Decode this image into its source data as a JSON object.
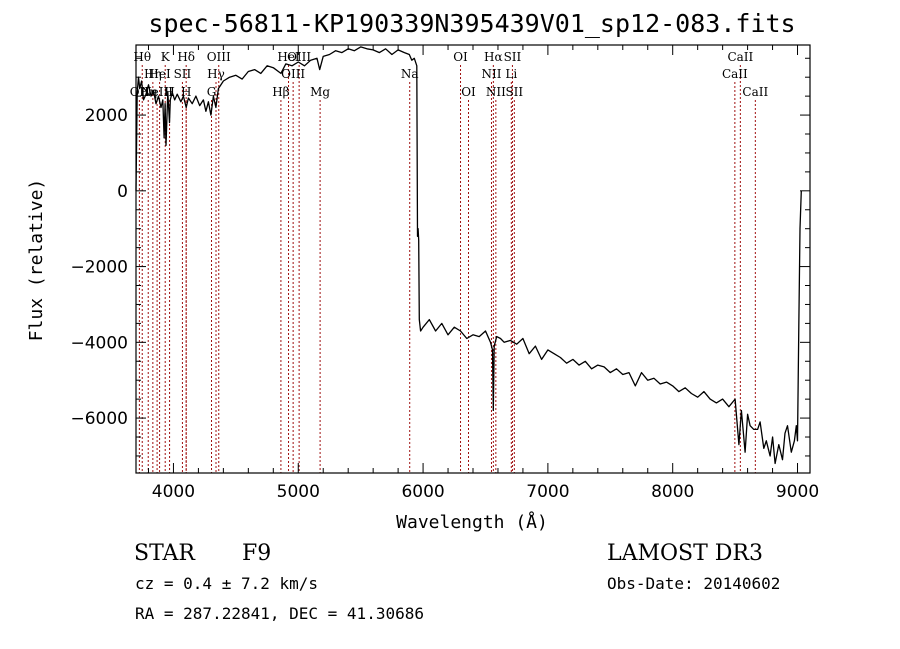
{
  "chart_data": {
    "type": "line",
    "title": "spec-56811-KP190339N395439V01_sp12-083.fits",
    "xlabel": "Wavelength (Å)",
    "ylabel": "Flux (relative)",
    "xlim": [
      3700,
      9100
    ],
    "ylim": [
      -7450,
      3850
    ],
    "x_ticks": [
      4000,
      5000,
      6000,
      7000,
      8000,
      9000
    ],
    "y_ticks": [
      2000,
      0,
      -2000,
      -4000,
      -6000
    ],
    "x_tick_labels": [
      "4000",
      "5000",
      "6000",
      "7000",
      "8000",
      "9000"
    ],
    "y_tick_labels": [
      "2000",
      "0",
      "−2000",
      "−4000",
      "−6000"
    ],
    "grid": false,
    "series": [
      {
        "x": [
          3700,
          3710,
          3720,
          3730,
          3745,
          3760,
          3780,
          3800,
          3820,
          3840,
          3860,
          3880,
          3900,
          3915,
          3925,
          3933,
          3940,
          3955,
          3968,
          3975,
          3990,
          4010,
          4030,
          4060,
          4080,
          4102,
          4120,
          4150,
          4180,
          4210,
          4240,
          4260,
          4280,
          4300,
          4320,
          4340,
          4360,
          4400,
          4450,
          4500,
          4550,
          4600,
          4650,
          4700,
          4750,
          4800,
          4861,
          4900,
          4950,
          5000,
          5050,
          5100,
          5150,
          5172,
          5200,
          5250,
          5300,
          5350,
          5400,
          5450,
          5500,
          5550,
          5600,
          5650,
          5700,
          5750,
          5800,
          5850,
          5890,
          5910,
          5930,
          5950,
          5955,
          5960,
          5965,
          5970,
          5980,
          6000,
          6050,
          6100,
          6150,
          6200,
          6250,
          6300,
          6350,
          6400,
          6450,
          6500,
          6540,
          6556,
          6563,
          6570,
          6590,
          6620,
          6650,
          6700,
          6750,
          6800,
          6850,
          6900,
          6950,
          7000,
          7050,
          7100,
          7150,
          7200,
          7250,
          7300,
          7350,
          7400,
          7450,
          7500,
          7550,
          7600,
          7650,
          7700,
          7750,
          7800,
          7850,
          7900,
          7950,
          8000,
          8050,
          8100,
          8150,
          8200,
          8250,
          8300,
          8350,
          8400,
          8450,
          8500,
          8530,
          8550,
          8580,
          8600,
          8620,
          8650,
          8680,
          8700,
          8730,
          8750,
          8780,
          8800,
          8820,
          8850,
          8880,
          8900,
          8920,
          8950,
          8975,
          8990,
          9000,
          9010,
          9020,
          9030
        ],
        "y": [
          0,
          2600,
          3000,
          2700,
          2900,
          2400,
          2550,
          2800,
          2500,
          2650,
          2300,
          2500,
          2200,
          2400,
          1400,
          2300,
          1200,
          2600,
          1800,
          2400,
          2600,
          2400,
          2550,
          2350,
          2500,
          2200,
          2450,
          2300,
          2500,
          2250,
          2400,
          2100,
          2350,
          2000,
          2500,
          2200,
          2700,
          2900,
          3000,
          3050,
          2950,
          3150,
          3200,
          3100,
          3300,
          3250,
          3100,
          3350,
          3300,
          3400,
          3300,
          3450,
          3500,
          3200,
          3550,
          3600,
          3700,
          3650,
          3750,
          3700,
          3800,
          3750,
          3720,
          3650,
          3750,
          3600,
          3720,
          3650,
          3600,
          3450,
          3500,
          3300,
          -1200,
          -1000,
          -1300,
          -3400,
          -3700,
          -3600,
          -3400,
          -3700,
          -3500,
          -3800,
          -3600,
          -3700,
          -3900,
          -3800,
          -3850,
          -3700,
          -4000,
          -4200,
          -5800,
          -4100,
          -3850,
          -3900,
          -4000,
          -3950,
          -4050,
          -3900,
          -4300,
          -4100,
          -4450,
          -4200,
          -4300,
          -4400,
          -4550,
          -4450,
          -4600,
          -4500,
          -4700,
          -4600,
          -4650,
          -4800,
          -4700,
          -4850,
          -4800,
          -5150,
          -4800,
          -5000,
          -4950,
          -5100,
          -5050,
          -5150,
          -5300,
          -5200,
          -5350,
          -5450,
          -5300,
          -5500,
          -5600,
          -5500,
          -5700,
          -5500,
          -6700,
          -5800,
          -6900,
          -5900,
          -6200,
          -6300,
          -6300,
          -6100,
          -6800,
          -6600,
          -7000,
          -6500,
          -7200,
          -6700,
          -7100,
          -6400,
          -6200,
          -6900,
          -6600,
          -6200,
          -6600,
          -3600,
          -1000,
          0
        ]
      }
    ],
    "lines": [
      {
        "w": 3727,
        "n": "OII",
        "r": 3
      },
      {
        "w": 3750,
        "n": "Hθ",
        "r": 1
      },
      {
        "w": 3798,
        "n": "Hη",
        "r": 3
      },
      {
        "w": 3835,
        "n": "Hη",
        "r": 2
      },
      {
        "w": 3869,
        "n": "NeIII",
        "r": 3
      },
      {
        "w": 3889,
        "n": "HeI",
        "r": 2
      },
      {
        "w": 3934,
        "n": "K",
        "r": 1
      },
      {
        "w": 3969,
        "n": "H",
        "r": 3
      },
      {
        "w": 4072,
        "n": "SII",
        "r": 2
      },
      {
        "w": 4102,
        "n": "Hδ",
        "r": 1
      },
      {
        "w": 4102,
        "n": "H",
        "r": 3
      },
      {
        "w": 4305,
        "n": "G",
        "r": 3
      },
      {
        "w": 4341,
        "n": "Hγ",
        "r": 2
      },
      {
        "w": 4363,
        "n": "OIII",
        "r": 1
      },
      {
        "w": 4861,
        "n": "Hβ",
        "r": 3
      },
      {
        "w": 4922,
        "n": "HeI",
        "r": 1
      },
      {
        "w": 4959,
        "n": "OIII",
        "r": 2
      },
      {
        "w": 5007,
        "n": "OIII",
        "r": 1
      },
      {
        "w": 5175,
        "n": "Mg",
        "r": 3
      },
      {
        "w": 5893,
        "n": "Na",
        "r": 2
      },
      {
        "w": 6300,
        "n": "OI",
        "r": 1
      },
      {
        "w": 6364,
        "n": "OI",
        "r": 3
      },
      {
        "w": 6548,
        "n": "NII",
        "r": 2
      },
      {
        "w": 6563,
        "n": "Hα",
        "r": 1
      },
      {
        "w": 6583,
        "n": "NII",
        "r": 3
      },
      {
        "w": 6707,
        "n": "Li",
        "r": 2
      },
      {
        "w": 6716,
        "n": "SII",
        "r": 1
      },
      {
        "w": 6731,
        "n": "SII",
        "r": 3
      },
      {
        "w": 8498,
        "n": "CaII",
        "r": 2
      },
      {
        "w": 8542,
        "n": "CaII",
        "r": 1
      },
      {
        "w": 8662,
        "n": "CaII",
        "r": 3
      }
    ]
  },
  "info": {
    "object_class": "STAR",
    "subclass": "F9",
    "survey": "LAMOST DR3",
    "velocity": "cz = 0.4 ± 7.2 km/s",
    "obs_date": "Obs-Date: 20140602",
    "coords": "RA = 287.22841, DEC =  41.30686"
  }
}
